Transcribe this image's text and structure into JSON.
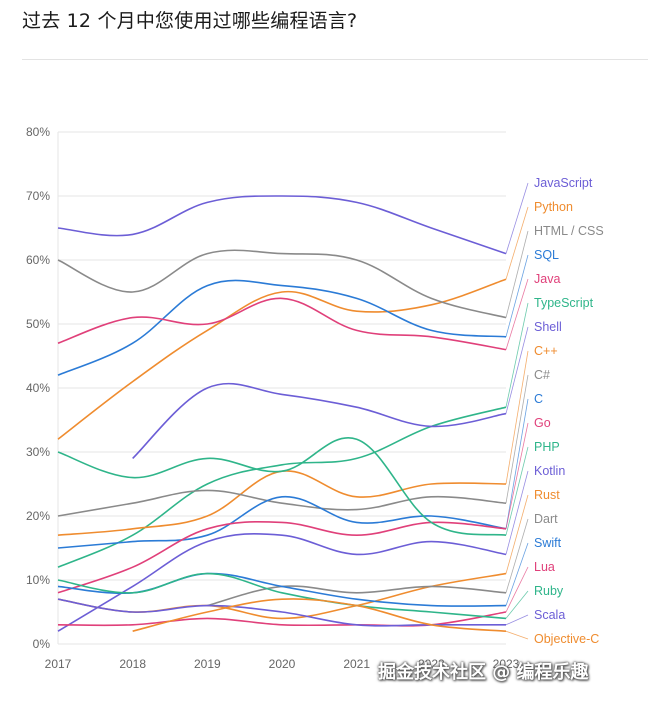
{
  "page": {
    "title": "过去 12 个月中您使用过哪些编程语言?",
    "watermark": "掘金技术社区 @ 编程乐趣"
  },
  "chart_data": {
    "type": "line",
    "title": "过去 12 个月中您使用过哪些编程语言?",
    "xlabel": "",
    "ylabel": "",
    "x": [
      2017,
      2018,
      2019,
      2020,
      2021,
      2022,
      2023
    ],
    "x_tick_labels": [
      "2017",
      "2018",
      "2019",
      "2020",
      "2021",
      "2022",
      "2023"
    ],
    "ylim": [
      0,
      80
    ],
    "y_ticks": [
      0,
      10,
      20,
      30,
      40,
      50,
      60,
      70,
      80
    ],
    "y_tick_labels": [
      "0%",
      "10%",
      "20%",
      "30%",
      "40%",
      "50%",
      "60%",
      "70%",
      "80%"
    ],
    "grid": "horizontal",
    "legend": "right, end-of-line labels",
    "series": [
      {
        "name": "JavaScript",
        "color": "#6c5ed6",
        "values": [
          65,
          64,
          69,
          70,
          69,
          65,
          61
        ]
      },
      {
        "name": "Python",
        "color": "#ef8c2f",
        "values": [
          32,
          41,
          49,
          55,
          52,
          53,
          57
        ]
      },
      {
        "name": "HTML / CSS",
        "color": "#8a8a8a",
        "values": [
          60,
          55,
          61,
          61,
          60,
          54,
          51
        ]
      },
      {
        "name": "SQL",
        "color": "#2b7bd6",
        "values": [
          42,
          47,
          56,
          56,
          54,
          49,
          48
        ]
      },
      {
        "name": "Java",
        "color": "#e0407a",
        "values": [
          47,
          51,
          50,
          54,
          49,
          48,
          46
        ]
      },
      {
        "name": "TypeScript",
        "color": "#2fb58a",
        "values": [
          12,
          17,
          25,
          28,
          29,
          34,
          37
        ]
      },
      {
        "name": "Shell",
        "color": "#6c5ed6",
        "values": [
          null,
          29,
          40,
          39,
          37,
          34,
          36
        ]
      },
      {
        "name": "C++",
        "color": "#ef8c2f",
        "values": [
          17,
          18,
          20,
          27,
          23,
          25,
          25
        ]
      },
      {
        "name": "C#",
        "color": "#8a8a8a",
        "values": [
          20,
          22,
          24,
          22,
          21,
          23,
          22
        ]
      },
      {
        "name": "C",
        "color": "#2b7bd6",
        "values": [
          15,
          16,
          17,
          23,
          19,
          20,
          18
        ]
      },
      {
        "name": "Go",
        "color": "#e0407a",
        "values": [
          8,
          12,
          18,
          19,
          17,
          19,
          18
        ]
      },
      {
        "name": "PHP",
        "color": "#2fb58a",
        "values": [
          30,
          26,
          29,
          27,
          32,
          19,
          17
        ]
      },
      {
        "name": "Kotlin",
        "color": "#6c5ed6",
        "values": [
          2,
          9,
          16,
          17,
          14,
          16,
          14
        ]
      },
      {
        "name": "Rust",
        "color": "#ef8c2f",
        "values": [
          7,
          5,
          6,
          4,
          6,
          9,
          11
        ]
      },
      {
        "name": "Dart",
        "color": "#8a8a8a",
        "values": [
          null,
          null,
          6,
          9,
          8,
          9,
          8
        ]
      },
      {
        "name": "Swift",
        "color": "#2b7bd6",
        "values": [
          9,
          8,
          11,
          9,
          7,
          6,
          6
        ]
      },
      {
        "name": "Lua",
        "color": "#e0407a",
        "values": [
          3,
          3,
          4,
          3,
          3,
          3,
          5
        ]
      },
      {
        "name": "Ruby",
        "color": "#2fb58a",
        "values": [
          10,
          8,
          11,
          8,
          6,
          5,
          4
        ]
      },
      {
        "name": "Scala",
        "color": "#6c5ed6",
        "values": [
          7,
          5,
          6,
          5,
          3,
          3,
          3
        ]
      },
      {
        "name": "Objective-C",
        "color": "#ef8c2f",
        "values": [
          null,
          2,
          5,
          7,
          6,
          3,
          2
        ]
      }
    ]
  }
}
